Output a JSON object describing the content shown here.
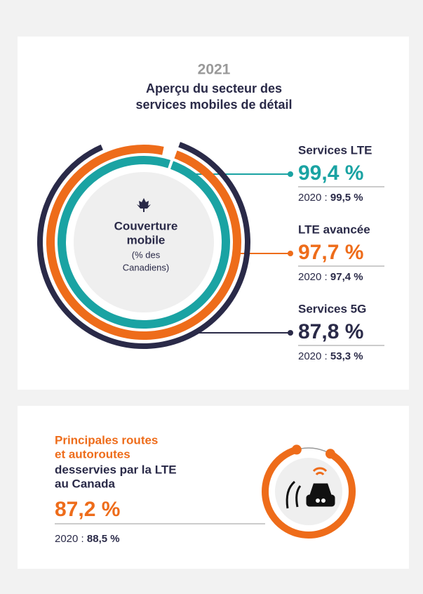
{
  "chart_data": [
    {
      "type": "radial_bar",
      "title": "2021",
      "subtitle": [
        "Aperçu du secteur des",
        "services mobiles de détail"
      ],
      "center_label": [
        "Couverture",
        "mobile"
      ],
      "center_note": [
        "(% des",
        "Canadiens)"
      ],
      "ylim": [
        0,
        100
      ],
      "series": [
        {
          "name": "Services LTE",
          "color": "#1aa3a3",
          "values": [
            99.4
          ],
          "value_labels": [
            "99,4 %"
          ]
        },
        {
          "name": "LTE avancée",
          "color": "#ee6c1a",
          "values": [
            97.7
          ],
          "value_labels": [
            "97,7 %"
          ]
        },
        {
          "name": "Services 5G",
          "color": "#2a2a48",
          "values": [
            87.8
          ],
          "value_labels": [
            "87,8 %"
          ]
        }
      ],
      "previous_label": "2020 :",
      "previous_values": [
        99.5,
        97.4,
        53.3
      ],
      "previous_value_labels": [
        "99,5 %",
        "97,4 %",
        "53,3 %"
      ]
    },
    {
      "type": "radial_bar",
      "title_highlight": [
        "Principales routes",
        "et autoroutes"
      ],
      "title": [
        "desservies par la LTE",
        "au Canada"
      ],
      "ylim": [
        0,
        100
      ],
      "series": [
        {
          "name": "LTE",
          "color": "#ee6c1a",
          "values": [
            87.2
          ],
          "value_labels": [
            "87,2 %"
          ]
        }
      ],
      "previous_label": "2020 :",
      "previous_values": [
        88.5
      ],
      "previous_value_labels": [
        "88,5 %"
      ]
    }
  ]
}
